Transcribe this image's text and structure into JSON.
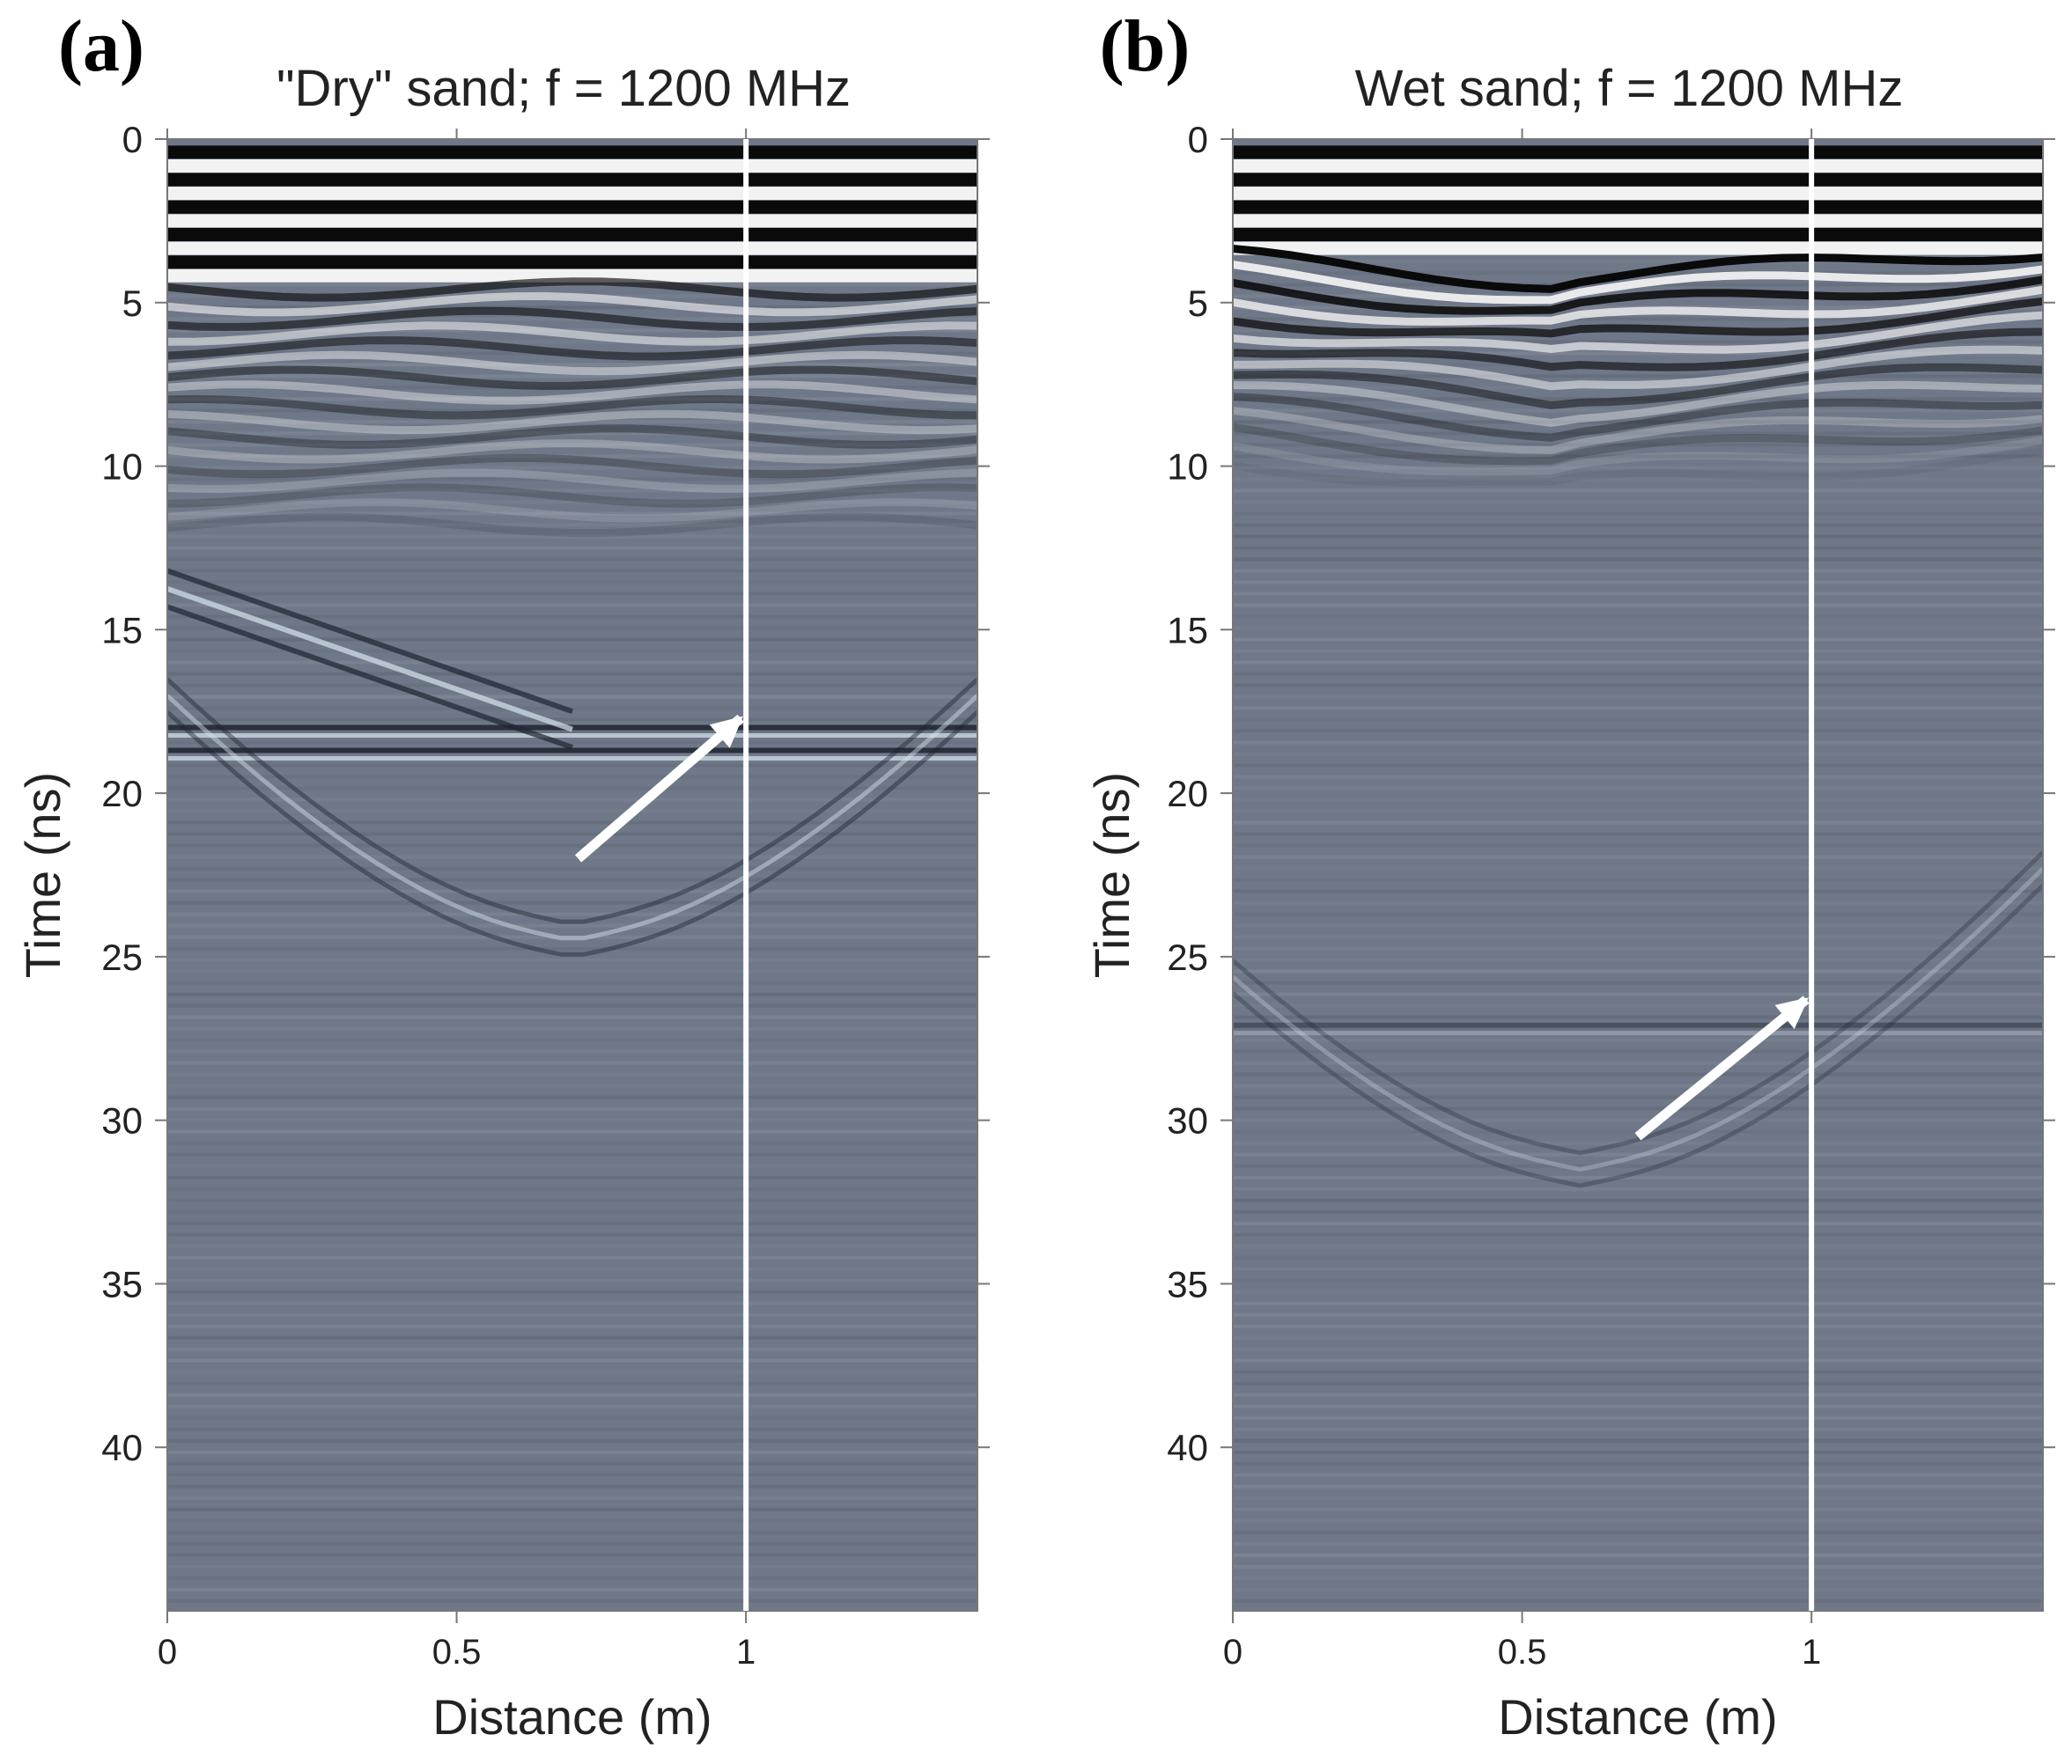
{
  "chart_data": [
    {
      "type": "heatmap",
      "panel_label": "(a)",
      "title": "\"Dry\" sand; f =  1200 MHz",
      "xlabel": "Distance (m)",
      "ylabel": "Time (ns)",
      "xlim": [
        0,
        1.4
      ],
      "ylim": [
        0,
        45
      ],
      "y_inverted": true,
      "xticks": [
        0,
        0.5,
        1
      ],
      "xtick_labels": [
        "0",
        "0.5",
        "1"
      ],
      "yticks": [
        0,
        5,
        10,
        15,
        20,
        25,
        30,
        35,
        40
      ],
      "ytick_labels": [
        "0",
        "5",
        "10",
        "15",
        "20",
        "25",
        "30",
        "35",
        "40"
      ],
      "colormap": "grayscale radargram",
      "marker_line": {
        "x": 1
      },
      "annotation_arrow": {
        "from": [
          0.71,
          22
        ],
        "to": [
          1.0,
          17.6
        ],
        "target": "reflection at ~18 ns"
      },
      "features": [
        {
          "type": "flat_reflector",
          "time_ns": 18.1
        },
        {
          "type": "flat_reflector",
          "time_ns": 18.8
        },
        {
          "type": "dipping_event",
          "from": [
            0,
            13.2
          ],
          "to": [
            0.7,
            17.5
          ]
        },
        {
          "type": "hyperbola",
          "apex_x": 0.7,
          "apex_time_ns": 24
        }
      ]
    },
    {
      "type": "heatmap",
      "panel_label": "(b)",
      "title": "Wet sand; f =  1200 MHz",
      "xlabel": "Distance (m)",
      "ylabel": "Time (ns)",
      "xlim": [
        0,
        1.4
      ],
      "ylim": [
        0,
        45
      ],
      "y_inverted": true,
      "xticks": [
        0,
        0.5,
        1
      ],
      "xtick_labels": [
        "0",
        "0.5",
        "1"
      ],
      "yticks": [
        0,
        5,
        10,
        15,
        20,
        25,
        30,
        35,
        40
      ],
      "ytick_labels": [
        "0",
        "5",
        "10",
        "15",
        "20",
        "25",
        "30",
        "35",
        "40"
      ],
      "colormap": "grayscale radargram",
      "marker_line": {
        "x": 1
      },
      "annotation_arrow": {
        "from": [
          0.7,
          30.5
        ],
        "to": [
          1.0,
          26.2
        ],
        "target": "reflection at ~27 ns"
      },
      "features": [
        {
          "type": "flat_reflector",
          "time_ns": 27.2
        },
        {
          "type": "hyperbola",
          "apex_x": 0.6,
          "apex_time_ns": 31
        }
      ]
    }
  ],
  "colors": {
    "background": "#6f7888",
    "band_dark": "#0a0a0a",
    "band_light": "#f2f2f2",
    "reflector_dark": "#1e2430",
    "reflector_light": "#d6e6ee",
    "annotation": "#ffffff",
    "axis": "#777777",
    "text": "#222222"
  }
}
